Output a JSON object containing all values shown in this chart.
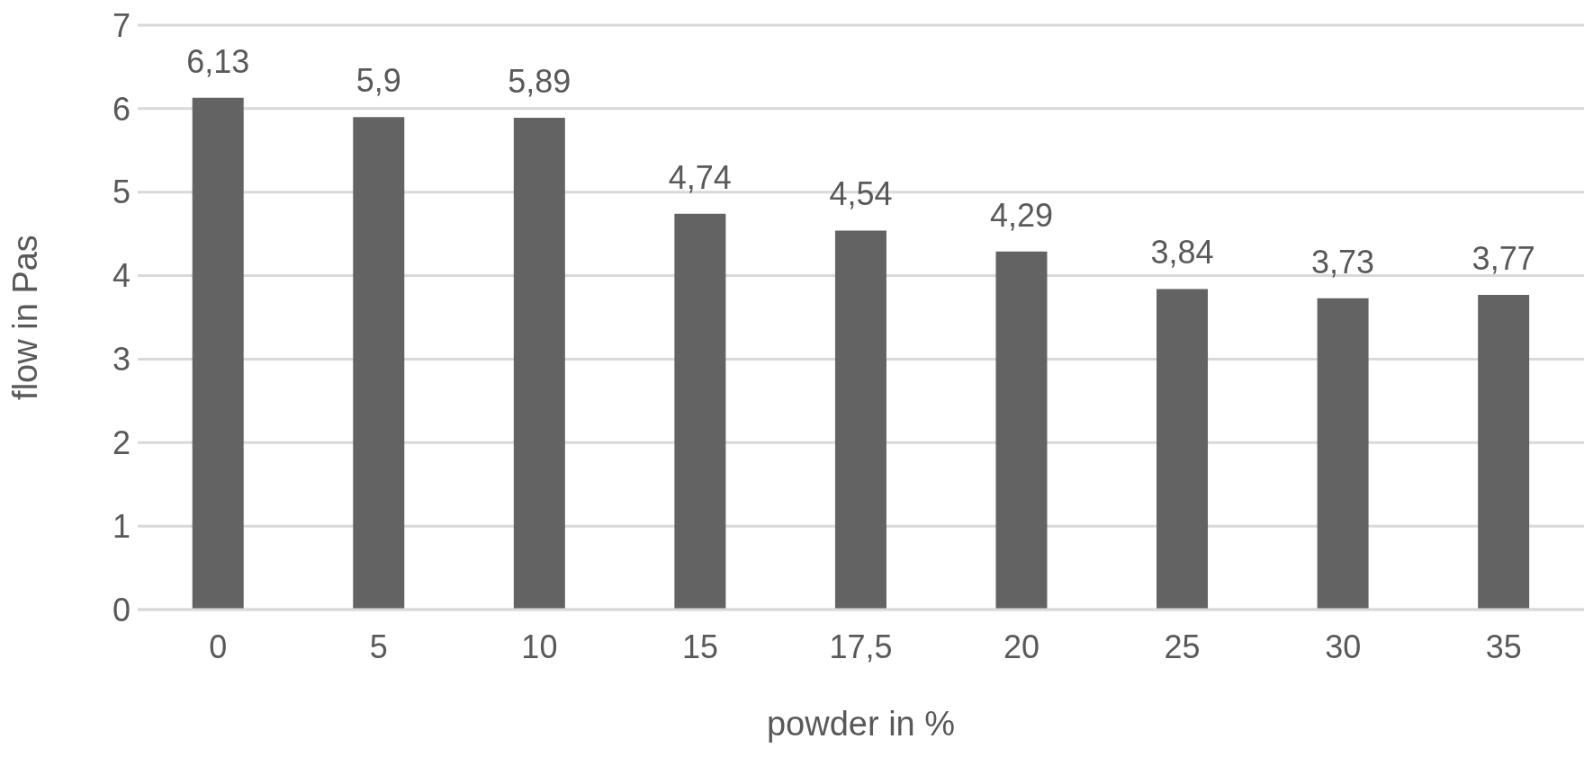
{
  "chart_data": {
    "type": "bar",
    "xlabel": "powder in %",
    "ylabel": "flow in Pas",
    "categories": [
      "0",
      "5",
      "10",
      "15",
      "17,5",
      "20",
      "25",
      "30",
      "35"
    ],
    "values": [
      6.13,
      5.9,
      5.89,
      4.74,
      4.54,
      4.29,
      3.84,
      3.73,
      3.77
    ],
    "value_labels": [
      "6,13",
      "5,9",
      "5,89",
      "4,74",
      "4,54",
      "4,29",
      "3,84",
      "3,73",
      "3,77"
    ],
    "color": "#636363",
    "ylim": [
      0,
      7
    ],
    "yticks": [
      0,
      1,
      2,
      3,
      4,
      5,
      6,
      7
    ],
    "grid": "y",
    "legend": false
  }
}
